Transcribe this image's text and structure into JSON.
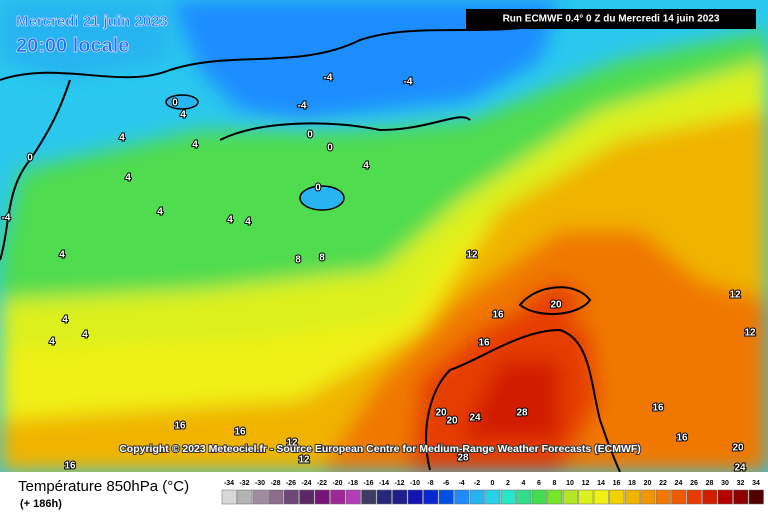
{
  "header": {
    "date": "Mercredi 21 juin 2023",
    "time": "20:00 locale",
    "run": "Run ECMWF 0.4° 0 Z du Mercredi 14 juin 2023"
  },
  "copyright": "Copyright © 2023 Meteociel.fr - Source European Centre for Medium-Range Weather Forecasts (ECMWF)",
  "footer": {
    "title": "Température 850hPa (°C)",
    "lead": "(+ 186h)"
  },
  "legend": {
    "ticks": [
      -34,
      -32,
      -30,
      -28,
      -26,
      -24,
      -22,
      -20,
      -18,
      -16,
      -14,
      -12,
      -10,
      -8,
      -6,
      -4,
      -2,
      0,
      2,
      4,
      6,
      8,
      10,
      12,
      14,
      16,
      18,
      20,
      22,
      24,
      26,
      28,
      30,
      32,
      34
    ],
    "colors": [
      "#d8d8d8",
      "#b4b4b4",
      "#a08ca0",
      "#8c6e8c",
      "#6e4678",
      "#5a2864",
      "#781478",
      "#9b2896",
      "#b43cb4",
      "#3c3c64",
      "#282878",
      "#1e1e8c",
      "#1414b4",
      "#0a28d2",
      "#0050e6",
      "#1e8cff",
      "#28b4f0",
      "#28d2e6",
      "#28e6c8",
      "#32dc8c",
      "#46dc50",
      "#78e628",
      "#b4e628",
      "#dcf01e",
      "#f0f014",
      "#f0d200",
      "#f0b400",
      "#f09600",
      "#f07800",
      "#f05a00",
      "#e63c00",
      "#d21e00",
      "#b40000",
      "#8c0000",
      "#500000"
    ]
  },
  "contour_labels": [
    "-4",
    "-4",
    "-4",
    "0",
    "4",
    "0",
    "0",
    "4",
    "4",
    "0",
    "4",
    "4",
    "0",
    "4",
    "4",
    "4",
    "4",
    "8",
    "8",
    "4",
    "4",
    "4",
    "12",
    "16",
    "16",
    "20",
    "12",
    "12",
    "20",
    "20",
    "24",
    "28",
    "16",
    "16",
    "16",
    "16",
    "12",
    "12",
    "16",
    "20",
    "24",
    "28",
    "-4"
  ]
}
